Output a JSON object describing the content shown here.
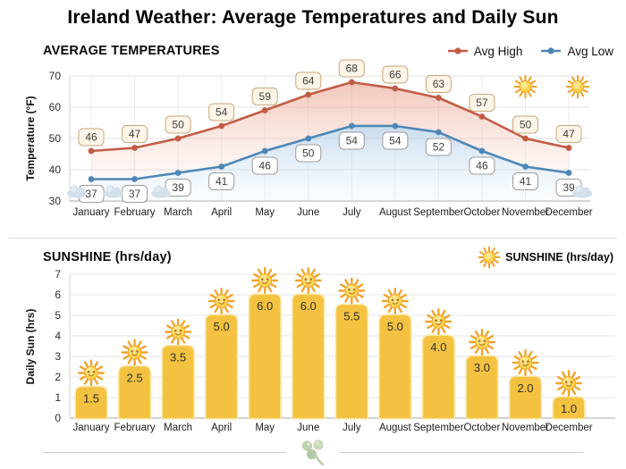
{
  "title": "Ireland Weather: Average Temperatures and Daily Sun",
  "chart_data": [
    {
      "type": "line",
      "title": "AVERAGE TEMPERATURES",
      "ylabel": "Temperature (°F)",
      "ylim": [
        30,
        70
      ],
      "yticks": [
        30,
        40,
        50,
        60,
        70
      ],
      "grid": true,
      "legend_position": "top-right",
      "categories": [
        "January",
        "February",
        "March",
        "April",
        "May",
        "June",
        "July",
        "August",
        "September",
        "October",
        "November",
        "December"
      ],
      "series": [
        {
          "name": "Avg High",
          "color": "#c25b45",
          "fill_top": "rgba(226,128,99,0.45)",
          "fill_bottom": "rgba(248,226,217,0.22)",
          "label_bg": "#fdf5e7",
          "label_border": "#c9a87e",
          "values": [
            46,
            47,
            50,
            54,
            59,
            64,
            68,
            66,
            63,
            57,
            50,
            47
          ]
        },
        {
          "name": "Avg Low",
          "color": "#4e87b7",
          "fill_top": "rgba(147,186,220,0.5)",
          "fill_bottom": "rgba(230,242,250,0.22)",
          "label_bg": "#ffffff",
          "label_border": "#9c9c9c",
          "values": [
            37,
            37,
            39,
            41,
            46,
            50,
            54,
            54,
            52,
            46,
            41,
            39
          ]
        }
      ],
      "decorations": {
        "sun_icon_months": [
          "November",
          "December"
        ],
        "cloud_icon_months": [
          "January",
          "February",
          "March",
          "December"
        ]
      }
    },
    {
      "type": "bar",
      "title": "SUNSHINE (hrs/day)",
      "ylabel": "Daily Sun (hrs)",
      "ylim": [
        0,
        7
      ],
      "yticks": [
        0,
        1,
        2,
        3,
        4,
        5,
        6,
        7
      ],
      "grid": true,
      "bar_color": "#f4c241",
      "bar_glow": "#fae49b",
      "legend_label": "SUNSHINE (hrs/day)",
      "categories": [
        "January",
        "February",
        "March",
        "April",
        "May",
        "June",
        "July",
        "August",
        "September",
        "October",
        "November",
        "December"
      ],
      "values": [
        1.5,
        2.5,
        3.5,
        5.0,
        6.0,
        6.0,
        5.5,
        5.0,
        4.0,
        3.0,
        2.0,
        1.0
      ],
      "decorations": {
        "sun_above_each_bar": true
      }
    }
  ]
}
